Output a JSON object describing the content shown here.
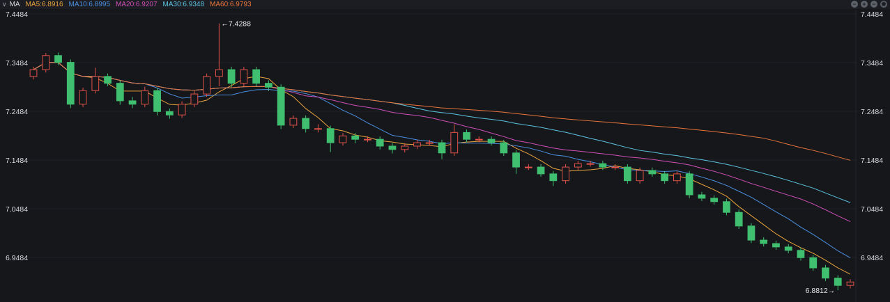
{
  "header": {
    "indicator": "MA",
    "legend": [
      {
        "label": "MA5:6.8916",
        "color": "#e8a33d"
      },
      {
        "label": "MA10:6.8995",
        "color": "#4a8fe0"
      },
      {
        "label": "MA20:6.9207",
        "color": "#d04fb8"
      },
      {
        "label": "MA30:6.9348",
        "color": "#5cc4e0"
      },
      {
        "label": "MA60:6.9793",
        "color": "#e8743b"
      }
    ],
    "tools": [
      "zoom-out-icon",
      "zoom-in-icon",
      "minus-icon",
      "gear-icon"
    ]
  },
  "chart_data": {
    "type": "candlestick",
    "yticks": [
      "7.4484",
      "7.3484",
      "7.2484",
      "7.1484",
      "7.0484",
      "6.9484"
    ],
    "ylim": [
      6.857,
      7.457
    ],
    "max_label": "←7.4288",
    "min_label": "6.8812→",
    "up_color": "#e0524a",
    "down_color": "#3fbf6f",
    "ma_periods": [
      5,
      10,
      20,
      30,
      60
    ],
    "candles": [
      [
        7.32,
        7.34,
        7.314,
        7.334
      ],
      [
        7.334,
        7.368,
        7.328,
        7.363
      ],
      [
        7.363,
        7.369,
        7.343,
        7.349
      ],
      [
        7.349,
        7.355,
        7.255,
        7.263
      ],
      [
        7.263,
        7.297,
        7.257,
        7.291
      ],
      [
        7.291,
        7.338,
        7.285,
        7.32
      ],
      [
        7.32,
        7.326,
        7.3,
        7.306
      ],
      [
        7.306,
        7.312,
        7.262,
        7.27
      ],
      [
        7.27,
        7.278,
        7.255,
        7.263
      ],
      [
        7.263,
        7.299,
        7.257,
        7.291
      ],
      [
        7.291,
        7.297,
        7.24,
        7.248
      ],
      [
        7.248,
        7.254,
        7.233,
        7.241
      ],
      [
        7.241,
        7.269,
        7.235,
        7.263
      ],
      [
        7.263,
        7.29,
        7.257,
        7.284
      ],
      [
        7.284,
        7.326,
        7.278,
        7.32
      ],
      [
        7.32,
        7.4288,
        7.3,
        7.334
      ],
      [
        7.334,
        7.34,
        7.298,
        7.306
      ],
      [
        7.306,
        7.34,
        7.3,
        7.334
      ],
      [
        7.334,
        7.34,
        7.3,
        7.306
      ],
      [
        7.306,
        7.312,
        7.29,
        7.298
      ],
      [
        7.298,
        7.304,
        7.212,
        7.22
      ],
      [
        7.22,
        7.24,
        7.214,
        7.234
      ],
      [
        7.234,
        7.24,
        7.205,
        7.213
      ],
      [
        7.213,
        7.222,
        7.205,
        7.213
      ],
      [
        7.213,
        7.219,
        7.165,
        7.184
      ],
      [
        7.184,
        7.204,
        7.178,
        7.198
      ],
      [
        7.198,
        7.204,
        7.183,
        7.191
      ],
      [
        7.191,
        7.197,
        7.185,
        7.191
      ],
      [
        7.191,
        7.197,
        7.17,
        7.177
      ],
      [
        7.177,
        7.183,
        7.162,
        7.17
      ],
      [
        7.17,
        7.183,
        7.164,
        7.177
      ],
      [
        7.177,
        7.19,
        7.171,
        7.184
      ],
      [
        7.184,
        7.19,
        7.178,
        7.184
      ],
      [
        7.184,
        7.19,
        7.15,
        7.163
      ],
      [
        7.163,
        7.222,
        7.157,
        7.205
      ],
      [
        7.205,
        7.211,
        7.185,
        7.191
      ],
      [
        7.191,
        7.197,
        7.185,
        7.191
      ],
      [
        7.191,
        7.197,
        7.178,
        7.184
      ],
      [
        7.184,
        7.19,
        7.157,
        7.163
      ],
      [
        7.163,
        7.169,
        7.12,
        7.134
      ],
      [
        7.134,
        7.14,
        7.128,
        7.134
      ],
      [
        7.134,
        7.14,
        7.114,
        7.12
      ],
      [
        7.12,
        7.126,
        7.095,
        7.106
      ],
      [
        7.106,
        7.14,
        7.1,
        7.134
      ],
      [
        7.134,
        7.147,
        7.128,
        7.141
      ],
      [
        7.141,
        7.147,
        7.135,
        7.141
      ],
      [
        7.141,
        7.147,
        7.128,
        7.134
      ],
      [
        7.134,
        7.14,
        7.128,
        7.134
      ],
      [
        7.134,
        7.14,
        7.1,
        7.106
      ],
      [
        7.106,
        7.133,
        7.1,
        7.127
      ],
      [
        7.127,
        7.133,
        7.114,
        7.12
      ],
      [
        7.12,
        7.126,
        7.1,
        7.106
      ],
      [
        7.106,
        7.126,
        7.1,
        7.12
      ],
      [
        7.12,
        7.126,
        7.07,
        7.077
      ],
      [
        7.077,
        7.083,
        7.064,
        7.07
      ],
      [
        7.07,
        7.076,
        7.057,
        7.063
      ],
      [
        7.063,
        7.069,
        7.035,
        7.041
      ],
      [
        7.041,
        7.047,
        7.007,
        7.013
      ],
      [
        7.013,
        7.019,
        6.978,
        6.984
      ],
      [
        6.984,
        6.99,
        6.971,
        6.977
      ],
      [
        6.977,
        6.983,
        6.964,
        6.97
      ],
      [
        6.97,
        6.976,
        6.957,
        6.963
      ],
      [
        6.963,
        6.969,
        6.942,
        6.948
      ],
      [
        6.948,
        6.954,
        6.921,
        6.927
      ],
      [
        6.927,
        6.933,
        6.9,
        6.906
      ],
      [
        6.906,
        6.912,
        6.8812,
        6.891
      ],
      [
        6.891,
        6.904,
        6.885,
        6.898
      ]
    ]
  }
}
